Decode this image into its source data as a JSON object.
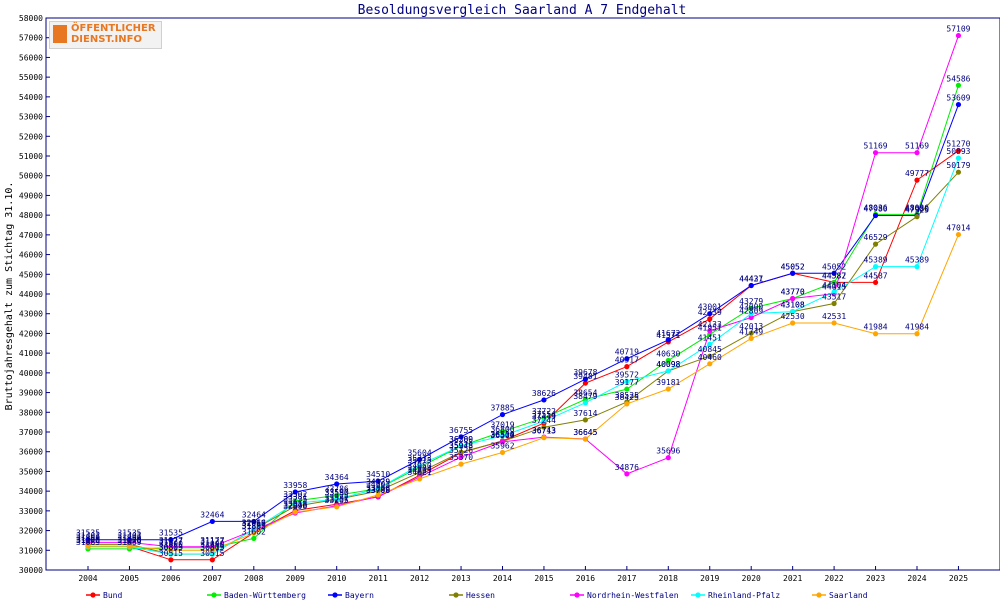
{
  "logo": {
    "line1": "ÖFFENTLICHER",
    "line2": "DIENST.INFO"
  },
  "chart_data": {
    "type": "line",
    "title": "Besoldungsvergleich Saarland A 7 Endgehalt",
    "xlabel": "",
    "ylabel": "Bruttojahresgehalt zum Stichtag 31.10.",
    "ylim": [
      30000,
      58000
    ],
    "ytick_step": 1000,
    "x": [
      "2004",
      "2005",
      "2006",
      "2007",
      "2008",
      "2009",
      "2010",
      "2011",
      "2012",
      "2013",
      "2014",
      "2015",
      "2016",
      "2017",
      "2018",
      "2019",
      "2020",
      "2021",
      "2022",
      "2023",
      "2024",
      "2025"
    ],
    "grid": false,
    "legend_position": "bottom",
    "series": [
      {
        "name": "Bund",
        "color": "#ff0000",
        "values": [
          31195,
          31195,
          30515,
          30515,
          31892,
          33018,
          33332,
          33708,
          34804,
          35948,
          36550,
          37449,
          39481,
          40317,
          41571,
          42739,
          44427,
          45052,
          44587,
          44587,
          49777,
          51270
        ]
      },
      {
        "name": "Baden-Württemberg",
        "color": "#00ee00",
        "values": [
          31069,
          31069,
          31127,
          31127,
          31602,
          33502,
          33786,
          34129,
          35215,
          36289,
          37019,
          37722,
          38654,
          39177,
          40630,
          41951,
          43279,
          43770,
          44582,
          48036,
          48036,
          54586
        ]
      },
      {
        "name": "Bayern",
        "color": "#0000ff",
        "values": [
          31535,
          31535,
          31535,
          32464,
          32464,
          33958,
          34364,
          34510,
          35604,
          36755,
          37885,
          38626,
          39678,
          40719,
          41672,
          43001,
          44431,
          45052,
          45052,
          47980,
          47980,
          53609
        ]
      },
      {
        "name": "Hessen",
        "color": "#808000",
        "values": [
          31300,
          31300,
          30809,
          30809,
          32066,
          33235,
          33580,
          34003,
          34950,
          35978,
          36524,
          37244,
          37614,
          38525,
          40098,
          40845,
          42013,
          43108,
          43517,
          46529,
          47925,
          50179
        ]
      },
      {
        "name": "Nordrhein-Westfalen",
        "color": "#ff00ff",
        "values": [
          31401,
          31401,
          31177,
          31177,
          32017,
          32890,
          33257,
          33730,
          34723,
          35726,
          36500,
          36743,
          36645,
          34876,
          35696,
          42133,
          42809,
          43770,
          44015,
          51169,
          51169,
          57109
        ]
      },
      {
        "name": "Rheinland-Pfalz",
        "color": "#00ffff",
        "values": [
          31170,
          31170,
          30813,
          30813,
          32066,
          33381,
          33590,
          34129,
          35333,
          36300,
          36800,
          37554,
          38479,
          39572,
          40098,
          41451,
          43000,
          43108,
          44104,
          45389,
          45389,
          50893
        ]
      },
      {
        "name": "Saarland",
        "color": "#ffa500",
        "values": [
          31200,
          31200,
          31000,
          31000,
          31865,
          32938,
          33205,
          33808,
          34621,
          35370,
          35962,
          36713,
          36645,
          38425,
          39181,
          40460,
          41749,
          42530,
          42531,
          41984,
          41984,
          47014
        ]
      }
    ]
  }
}
